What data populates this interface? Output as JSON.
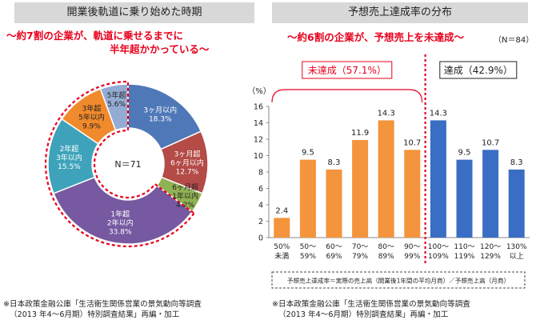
{
  "left": {
    "title": "開業後軌道に乗り始めた時期",
    "subtitle_line1": "～約7割の企業が、軌道に乗せるまでに",
    "subtitle_line2": "半年超かかっている～",
    "note_line1": "※日本政策金融公庫「生活衛生関係営業の景気動向等調査",
    "note_line2": "（2013 年4～6月期）特別調査結果」再編・加工"
  },
  "right": {
    "title": "予想売上達成率の分布",
    "subtitle": "～約6割の企業が、予想売上を未達成～",
    "n_label": "（N＝84）",
    "definition": "予想売上達成率＝実際の売上高（開業後1年間の平均月商）／予想売上高（月商）",
    "note_line1": "※日本政策金融公庫「生活衛生関係営業の景気動向等調査",
    "note_line2": "（2013 年4～6月期）特別調査結果」再編・加工"
  },
  "chart_data": [
    {
      "type": "pie",
      "center_label": "N＝71",
      "slices": [
        {
          "lines": [
            "3ヶ月以内"
          ],
          "pct_label": "18.3%",
          "value": 18.3,
          "color": "#4f78b8"
        },
        {
          "lines": [
            "3ヶ月超",
            "6ヶ月以内"
          ],
          "pct_label": "12.7%",
          "value": 12.7,
          "color": "#b44b47"
        },
        {
          "lines": [
            "6ヶ月超",
            "1年以内"
          ],
          "pct_label": "4.2%",
          "value": 4.2,
          "color": "#90b154"
        },
        {
          "lines": [
            "1年超",
            "2年以内"
          ],
          "pct_label": "33.8%",
          "value": 33.8,
          "color": "#7659a0"
        },
        {
          "lines": [
            "2年超",
            "3年以内"
          ],
          "pct_label": "15.5%",
          "value": 15.5,
          "color": "#3ea3ba"
        },
        {
          "lines": [
            "3年超",
            "5年以内"
          ],
          "pct_label": "9.9%",
          "value": 9.9,
          "color": "#f08a2c"
        },
        {
          "lines": [
            "5年超"
          ],
          "pct_label": "5.6%",
          "value": 5.6,
          "color": "#94acd4"
        }
      ],
      "highlight_dashed_from_slice": 3,
      "highlight_color": "#e8001c"
    },
    {
      "type": "bar",
      "ylabel": "（%）",
      "ylim": [
        0,
        16
      ],
      "yticks": [
        0,
        2,
        4,
        6,
        8,
        10,
        12,
        14,
        16
      ],
      "categories": [
        [
          "50%",
          "未満"
        ],
        [
          "50～",
          "59%"
        ],
        [
          "60～",
          "69%"
        ],
        [
          "70～",
          "79%"
        ],
        [
          "80～",
          "89%"
        ],
        [
          "90～",
          "99%"
        ],
        [
          "100～",
          "109%"
        ],
        [
          "110～",
          "119%"
        ],
        [
          "120～",
          "129%"
        ],
        [
          "130%",
          "以上"
        ]
      ],
      "values": [
        2.4,
        9.5,
        8.3,
        11.9,
        14.3,
        10.7,
        14.3,
        9.5,
        10.7,
        8.3
      ],
      "bar_colors": [
        "#f4943d",
        "#f4943d",
        "#f4943d",
        "#f4943d",
        "#f4943d",
        "#f4943d",
        "#3a6ec4",
        "#3a6ec4",
        "#3a6ec4",
        "#3a6ec4"
      ],
      "groups": [
        {
          "label": "未達成（57.1%）",
          "from": 0,
          "to": 5,
          "color": "#e8001c"
        },
        {
          "label": "達成（42.9%）",
          "from": 6,
          "to": 9,
          "color": "#222222"
        }
      ],
      "divider_color": "#e8001c"
    }
  ]
}
